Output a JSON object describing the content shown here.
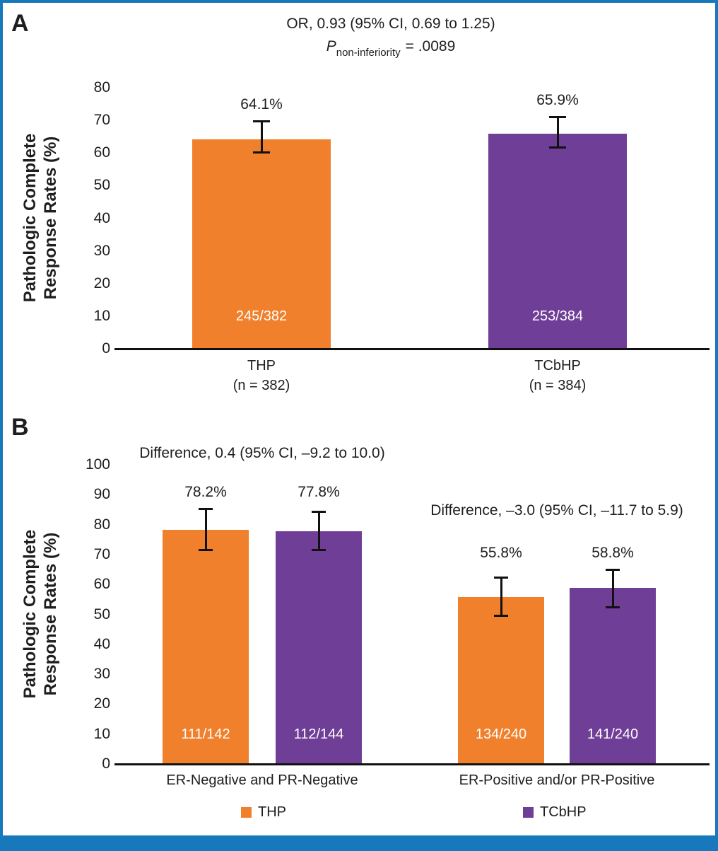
{
  "figure": {
    "frame_color": "#1878BC",
    "bottom_bar_color": "#1878BC",
    "background": "#FFFFFF",
    "axis_color": "#111111",
    "text_color": "#1E1E1E"
  },
  "chart_data": [
    {
      "type": "bar",
      "panel_letter": "A",
      "title": "OR, 0.93 (95% CI, 0.69 to 1.25)",
      "p_line": {
        "symbol": "P",
        "subscript": "non-inferiority",
        "rest": "= .0089"
      },
      "ylabel_line1": "Pathologic Complete",
      "ylabel_line2": "Response Rates (%)",
      "ylim": [
        0,
        80
      ],
      "yticks": [
        "80",
        "70",
        "60",
        "50",
        "40",
        "30",
        "20",
        "10",
        "0"
      ],
      "grid": false,
      "groups": [
        {
          "category_line1": "THP",
          "category_line2": "(n = 382)",
          "bars": [
            {
              "series": "THP",
              "value": 64.1,
              "value_label": "64.1%",
              "count_label": "245/382",
              "ci_low": 60.0,
              "ci_high": 69.9,
              "color": "#F0802C"
            }
          ]
        },
        {
          "category_line1": "TCbHP",
          "category_line2": "(n = 384)",
          "bars": [
            {
              "series": "TCbHP",
              "value": 65.9,
              "value_label": "65.9%",
              "count_label": "253/384",
              "ci_low": 61.5,
              "ci_high": 71.1,
              "color": "#6F3E97"
            }
          ]
        }
      ]
    },
    {
      "type": "bar",
      "panel_letter": "B",
      "ylabel_line1": "Pathologic Complete",
      "ylabel_line2": "Response Rates (%)",
      "ylim": [
        0,
        100
      ],
      "yticks": [
        "100",
        "90",
        "80",
        "70",
        "60",
        "50",
        "40",
        "30",
        "20",
        "10",
        "0"
      ],
      "grid": false,
      "groups": [
        {
          "annotation": "Difference, 0.4 (95% CI, –9.2 to 10.0)",
          "category_line1": "ER-Negative and PR-Negative",
          "bars": [
            {
              "series": "THP",
              "value": 78.2,
              "value_label": "78.2%",
              "count_label": "111/142",
              "ci_low": 71.4,
              "ci_high": 85.4,
              "color": "#F0802C"
            },
            {
              "series": "TCbHP",
              "value": 77.8,
              "value_label": "77.8%",
              "count_label": "112/144",
              "ci_low": 71.4,
              "ci_high": 84.4,
              "color": "#6F3E97"
            }
          ]
        },
        {
          "annotation": "Difference, –3.0 (95% CI, –11.7 to 5.9)",
          "category_line1": "ER-Positive and/or PR-Positive",
          "bars": [
            {
              "series": "THP",
              "value": 55.8,
              "value_label": "55.8%",
              "count_label": "134/240",
              "ci_low": 49.3,
              "ci_high": 62.3,
              "color": "#F0802C"
            },
            {
              "series": "TCbHP",
              "value": 58.8,
              "value_label": "58.8%",
              "count_label": "141/240",
              "ci_low": 52.3,
              "ci_high": 65.1,
              "color": "#6F3E97"
            }
          ]
        }
      ],
      "legend": [
        {
          "label": "THP",
          "color": "#F0802C"
        },
        {
          "label": "TCbHP",
          "color": "#6F3E97"
        }
      ]
    }
  ]
}
